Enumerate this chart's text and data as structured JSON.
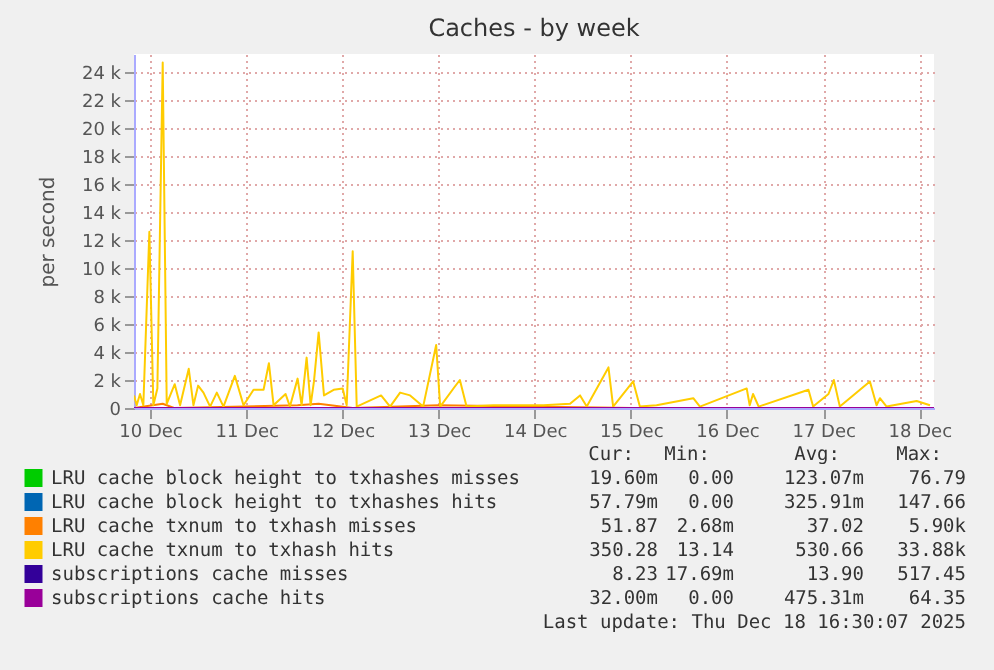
{
  "chart_data": {
    "type": "line",
    "title": "Caches - by week",
    "ylabel": "per second",
    "xlim": [
      "2025-12-09T20:00",
      "2025-12-18T03:40"
    ],
    "xticks": [
      {
        "value": "2025-12-10T00:00",
        "label": "10 Dec"
      },
      {
        "value": "2025-12-11T00:00",
        "label": "11 Dec"
      },
      {
        "value": "2025-12-12T00:00",
        "label": "12 Dec"
      },
      {
        "value": "2025-12-13T00:00",
        "label": "13 Dec"
      },
      {
        "value": "2025-12-14T00:00",
        "label": "14 Dec"
      },
      {
        "value": "2025-12-15T00:00",
        "label": "15 Dec"
      },
      {
        "value": "2025-12-16T00:00",
        "label": "16 Dec"
      },
      {
        "value": "2025-12-17T00:00",
        "label": "17 Dec"
      },
      {
        "value": "2025-12-18T00:00",
        "label": "18 Dec"
      }
    ],
    "ylim": [
      0,
      25300
    ],
    "yticks": [
      {
        "value": 0,
        "label": "0"
      },
      {
        "value": 2000,
        "label": "2 k"
      },
      {
        "value": 4000,
        "label": "4 k"
      },
      {
        "value": 6000,
        "label": "6 k"
      },
      {
        "value": 8000,
        "label": "8 k"
      },
      {
        "value": 10000,
        "label": "10 k"
      },
      {
        "value": 12000,
        "label": "12 k"
      },
      {
        "value": 14000,
        "label": "14 k"
      },
      {
        "value": 16000,
        "label": "16 k"
      },
      {
        "value": 18000,
        "label": "18 k"
      },
      {
        "value": 20000,
        "label": "20 k"
      },
      {
        "value": 22000,
        "label": "22 k"
      },
      {
        "value": 24000,
        "label": "24 k"
      }
    ],
    "grid": true,
    "legend": "bottom",
    "series": [
      {
        "name": "LRU cache block height to txhashes misses",
        "color": "#00cc00"
      },
      {
        "name": "LRU cache block height to txhashes hits",
        "color": "#0066b3"
      },
      {
        "name": "LRU cache txnum to txhash misses",
        "color": "#ff8000",
        "x": [
          "2025-12-09T20:00",
          "2025-12-10T03:10",
          "2025-12-10T06:00",
          "2025-12-11T12:50",
          "2025-12-11T18:05",
          "2025-12-12T02:35",
          "2025-12-13T00:00",
          "2025-12-15T00:35",
          "2025-12-18T03:40"
        ],
        "values": [
          0,
          300,
          0,
          200,
          300,
          0,
          200,
          0,
          0
        ]
      },
      {
        "name": "LRU cache txnum to txhash hits",
        "color": "#ffcc00",
        "x": [
          "2025-12-09T20:00",
          "2025-12-09T20:40",
          "2025-12-09T21:30",
          "2025-12-09T22:20",
          "2025-12-09T23:50",
          "2025-12-10T00:50",
          "2025-12-10T01:50",
          "2025-12-10T03:10",
          "2025-12-10T04:10",
          "2025-12-10T06:10",
          "2025-12-10T07:30",
          "2025-12-10T09:40",
          "2025-12-10T10:50",
          "2025-12-10T12:00",
          "2025-12-10T13:20",
          "2025-12-10T15:00",
          "2025-12-10T16:40",
          "2025-12-10T18:20",
          "2025-12-10T21:10",
          "2025-12-10T23:20",
          "2025-12-11T01:50",
          "2025-12-11T04:20",
          "2025-12-11T05:40",
          "2025-12-11T06:50",
          "2025-12-11T09:50",
          "2025-12-11T10:55",
          "2025-12-11T12:50",
          "2025-12-11T13:50",
          "2025-12-11T15:05",
          "2025-12-11T16:05",
          "2025-12-11T16:55",
          "2025-12-11T18:05",
          "2025-12-11T19:25",
          "2025-12-11T21:50",
          "2025-12-12T00:05",
          "2025-12-12T01:05",
          "2025-12-12T02:35",
          "2025-12-12T03:35",
          "2025-12-12T09:40",
          "2025-12-12T11:55",
          "2025-12-12T14:25",
          "2025-12-12T16:55",
          "2025-12-12T20:10",
          "2025-12-12T23:25",
          "2025-12-13T00:25",
          "2025-12-13T04:00",
          "2025-12-13T05:20",
          "2025-12-13T07:00",
          "2025-12-13T13:40",
          "2025-12-13T17:50",
          "2025-12-14T02:10",
          "2025-12-14T08:50",
          "2025-12-14T11:20",
          "2025-12-14T13:00",
          "2025-12-14T18:25",
          "2025-12-14T19:35",
          "2025-12-15T00:35",
          "2025-12-15T02:15",
          "2025-12-15T06:25",
          "2025-12-15T15:35",
          "2025-12-15T17:15",
          "2025-12-16T04:55",
          "2025-12-16T05:40",
          "2025-12-16T06:30",
          "2025-12-16T07:55",
          "2025-12-16T20:20",
          "2025-12-16T21:30",
          "2025-12-17T01:20",
          "2025-12-17T02:40",
          "2025-12-17T04:10",
          "2025-12-17T11:40",
          "2025-12-17T13:20",
          "2025-12-17T14:10",
          "2025-12-17T15:50",
          "2025-12-17T23:20",
          "2025-12-18T02:40"
        ],
        "values": [
          900,
          200,
          1000,
          200,
          12600,
          200,
          1400,
          24700,
          300,
          1700,
          200,
          2800,
          200,
          1600,
          1100,
          100,
          1100,
          100,
          2300,
          200,
          1300,
          1300,
          3200,
          200,
          1000,
          100,
          2100,
          200,
          3600,
          200,
          1900,
          5400,
          900,
          1300,
          1400,
          200,
          11200,
          100,
          900,
          100,
          1100,
          900,
          100,
          4500,
          100,
          1500,
          2000,
          100,
          200,
          200,
          200,
          300,
          900,
          100,
          2900,
          100,
          1900,
          100,
          200,
          700,
          100,
          1400,
          200,
          1000,
          100,
          1300,
          100,
          1000,
          2000,
          100,
          1900,
          200,
          700,
          100,
          500,
          200
        ]
      },
      {
        "name": "subscriptions cache misses",
        "color": "#330099"
      },
      {
        "name": "subscriptions cache hits",
        "color": "#990099",
        "x": [
          "2025-12-09T20:00",
          "2025-12-18T03:40"
        ],
        "values": [
          0,
          0
        ]
      }
    ],
    "annotations": [
      "Cur:",
      "Min:",
      "Avg:",
      "Max:",
      "19.60m",
      "0.00",
      "123.07m",
      "76.79",
      "57.79m",
      "0.00",
      "325.91m",
      "147.66",
      "51.87",
      "2.68m",
      "37.02",
      "5.90k",
      "350.28",
      "13.14",
      "530.66",
      "33.88k",
      "8.23",
      "17.69m",
      "13.90",
      "517.45",
      "32.00m",
      "0.00",
      "475.31m",
      "64.35",
      "Last update: Thu Dec 18 16:30:07 2025"
    ]
  }
}
